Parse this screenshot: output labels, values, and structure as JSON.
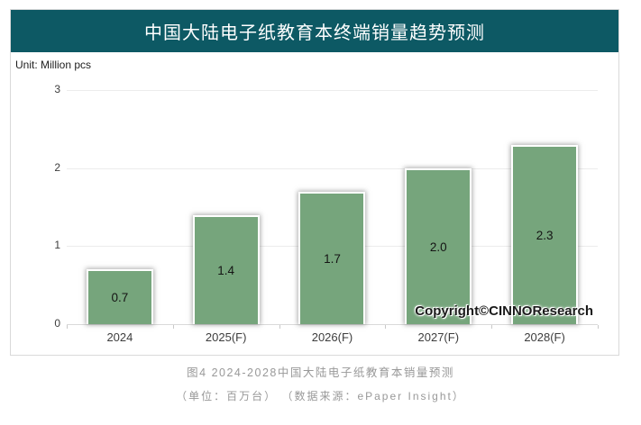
{
  "banner": {
    "title": "中国大陆电子纸教育本终端销量趋势预测"
  },
  "unit_label": "Unit: Million pcs",
  "copyright": "Copyright©CINNOResearch",
  "captions": {
    "line1": "图4 2024-2028中国大陆电子纸教育本销量预测",
    "line2": "（单位：百万台） （数据来源：ePaper Insight）"
  },
  "colors": {
    "banner_bg": "#0d5964",
    "bar_fill": "#76a57c",
    "caption_text": "#999999",
    "gridline": "#ececec",
    "axis": "#d9d9d9"
  },
  "chart_data": {
    "type": "bar",
    "title": "中国大陆电子纸教育本终端销量趋势预测",
    "unit": "Million pcs",
    "categories": [
      "2024",
      "2025(F)",
      "2026(F)",
      "2027(F)",
      "2028(F)"
    ],
    "values": [
      0.7,
      1.4,
      1.7,
      2.0,
      2.3
    ],
    "value_labels": [
      "0.7",
      "1.4",
      "1.7",
      "2.0",
      "2.3"
    ],
    "xlabel": "",
    "ylabel": "",
    "y_ticks": [
      0,
      1,
      2,
      3
    ],
    "ylim": [
      0,
      3
    ],
    "grid": true,
    "legend": false,
    "value_labels_position": "inside-center"
  }
}
